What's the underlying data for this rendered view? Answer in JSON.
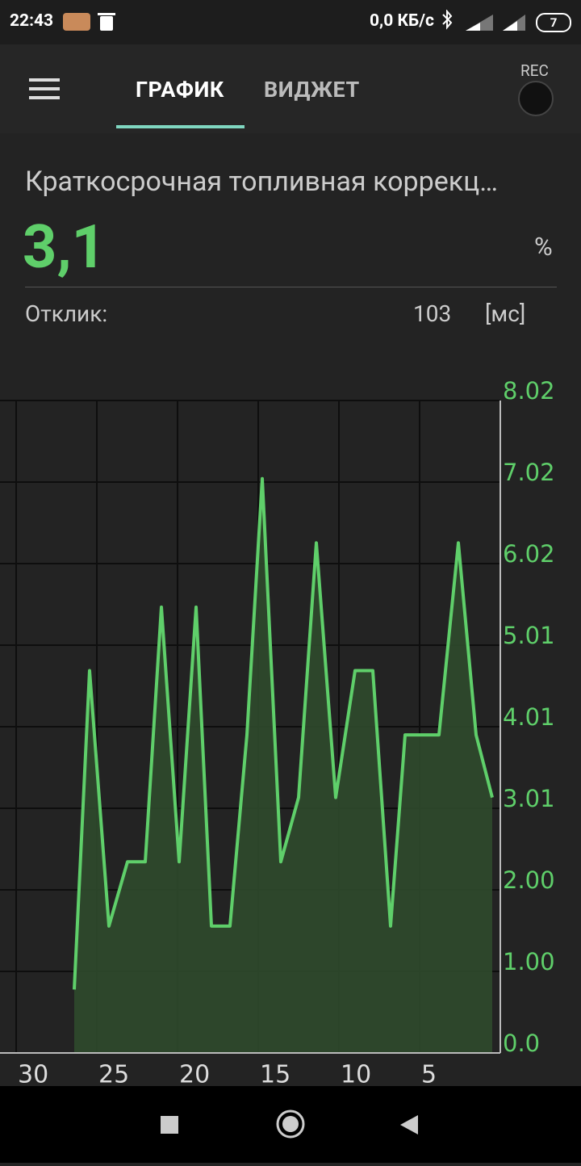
{
  "status_bar": {
    "time": "22:43",
    "network_speed": "0,0 КБ/с",
    "battery": "7"
  },
  "tabs": [
    "ГРАФИК",
    "ВИДЖЕТ"
  ],
  "rec_label": "REC",
  "sensor": {
    "title": "Краткосрочная топливная коррекц…",
    "value": "3,1",
    "unit": "%",
    "response_label": "Отклик:",
    "response_value": "103",
    "response_unit": "[мс]"
  },
  "chart_data": {
    "type": "area",
    "color": "#5fcf6a",
    "fill": "#2f4a2c",
    "x": [
      26.4,
      25.45,
      24.25,
      23.1,
      22,
      21,
      19.9,
      18.85,
      17.9,
      16.75,
      15.7,
      14.75,
      13.6,
      12.5,
      11.4,
      10.2,
      9.0,
      7.9,
      6.8,
      5.9,
      3.8,
      2.6,
      1.5,
      0.5
    ],
    "values": [
      0.78,
      4.7,
      1.56,
      2.35,
      2.35,
      5.48,
      2.35,
      5.48,
      1.56,
      1.56,
      3.91,
      7.06,
      2.35,
      3.14,
      6.27,
      3.14,
      4.7,
      4.7,
      1.56,
      3.91,
      3.91,
      6.27,
      3.91,
      3.14
    ],
    "xlim": [
      31,
      0
    ],
    "xticks": [
      30,
      25,
      20,
      15,
      10,
      5
    ],
    "ylim": [
      0,
      8.02
    ],
    "yticks": [
      {
        "value": 0,
        "label": "0.0"
      },
      {
        "value": 1.0025,
        "label": "1.00"
      },
      {
        "value": 2.005,
        "label": "2.00"
      },
      {
        "value": 3.0075,
        "label": "3.01"
      },
      4.01,
      {
        "value": 5.0125,
        "label": "5.01"
      },
      {
        "value": 6.015,
        "label": "6.02"
      },
      {
        "value": 7.0175,
        "label": "7.02"
      },
      8.02
    ],
    "grid": true
  }
}
